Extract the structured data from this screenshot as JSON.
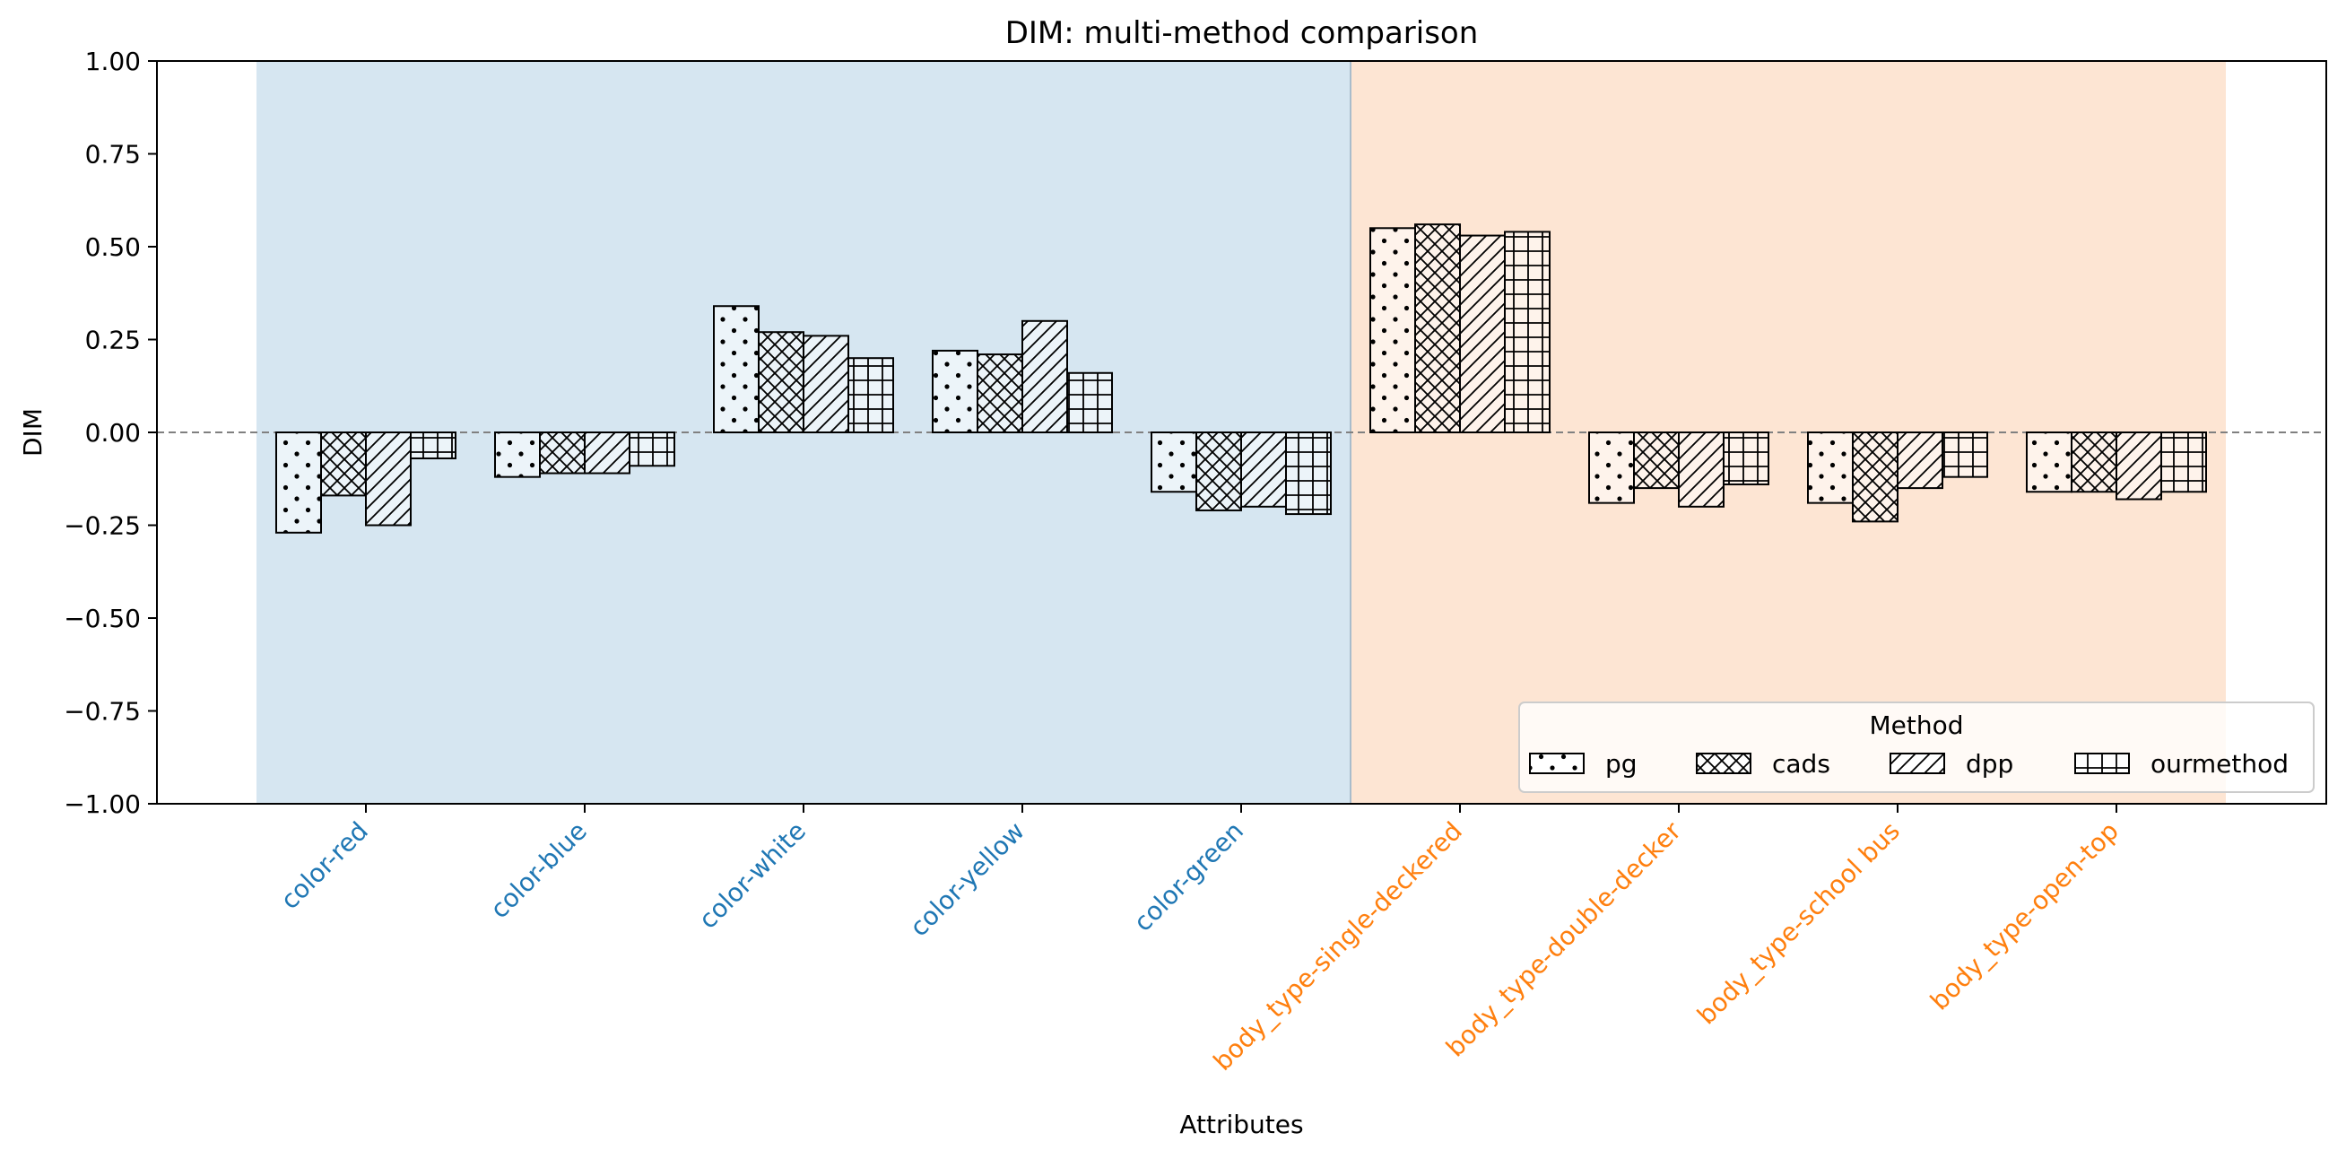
{
  "chart_data": {
    "type": "bar",
    "title": "DIM: multi-method comparison",
    "xlabel": "Attributes",
    "ylabel": "DIM",
    "ylim": [
      -1.0,
      1.0
    ],
    "yticks": [
      "1.00",
      "0.75",
      "0.50",
      "0.25",
      "0.00",
      "−0.25",
      "−0.50",
      "−0.75",
      "−1.00"
    ],
    "ytick_values": [
      1.0,
      0.75,
      0.5,
      0.25,
      0.0,
      -0.25,
      -0.5,
      -0.75,
      -1.0
    ],
    "grid": false,
    "zero_line": "dashed",
    "categories": [
      "color-red",
      "color-blue",
      "color-white",
      "color-yellow",
      "color-green",
      "body_type-single-deckered",
      "body_type-double-decker",
      "body_type-school bus",
      "body_type-open-top"
    ],
    "groups": [
      {
        "name": "color",
        "first": 0,
        "last": 4,
        "band_color": "#d6e6f1",
        "label_color": "#1f77b4"
      },
      {
        "name": "body_type",
        "first": 5,
        "last": 8,
        "band_color": "#fde5d3",
        "label_color": "#ff7f0e"
      }
    ],
    "series": [
      {
        "name": "pg",
        "hatch": "dots",
        "values": [
          -0.27,
          -0.12,
          0.34,
          0.22,
          -0.16,
          0.55,
          -0.19,
          -0.19,
          -0.16
        ]
      },
      {
        "name": "cads",
        "hatch": "crosshatch",
        "values": [
          -0.17,
          -0.11,
          0.27,
          0.21,
          -0.21,
          0.56,
          -0.15,
          -0.24,
          -0.16
        ]
      },
      {
        "name": "dpp",
        "hatch": "diagonal",
        "values": [
          -0.25,
          -0.11,
          0.26,
          0.3,
          -0.2,
          0.53,
          -0.2,
          -0.15,
          -0.18
        ]
      },
      {
        "name": "ourmethod",
        "hatch": "grid",
        "values": [
          -0.07,
          -0.09,
          0.2,
          0.16,
          -0.22,
          0.54,
          -0.14,
          -0.12,
          -0.16
        ]
      }
    ],
    "legend": {
      "title": "Method",
      "placement": "lower-right"
    }
  }
}
